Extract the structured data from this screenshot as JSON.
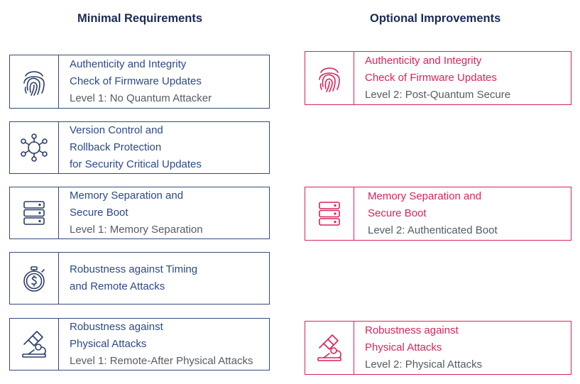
{
  "headings": {
    "minimal": "Minimal Requirements",
    "optional": "Optional Improvements"
  },
  "colors": {
    "minimal": "#2b4a86",
    "optional": "#d8245a",
    "level_text": "#555b63"
  },
  "minimal": [
    {
      "icon": "fingerprint-icon",
      "title1": "Authenticity and Integrity",
      "title2": "Check of Firmware Updates",
      "level": "Level 1: No Quantum Attacker"
    },
    {
      "icon": "network-nodes-icon",
      "title1": "Version Control and",
      "title2": "Rollback Protection",
      "title3": "for Security Critical Updates"
    },
    {
      "icon": "server-stack-icon",
      "title1": "Memory Separation and",
      "title2": "Secure Boot",
      "level": "Level 1: Memory Separation"
    },
    {
      "icon": "stopwatch-dollar-icon",
      "title1": "Robustness against Timing",
      "title2": "and Remote Attacks"
    },
    {
      "icon": "microscope-icon",
      "title1": "Robustness against",
      "title2": "Physical Attacks",
      "level": "Level 1: Remote-After Physical Attacks"
    }
  ],
  "optional": [
    {
      "icon": "fingerprint-icon",
      "title1": "Authenticity and Integrity",
      "title2": "Check of Firmware Updates",
      "level": "Level 2: Post-Quantum Secure"
    },
    {
      "icon": "server-stack-icon",
      "title1": "Memory Separation and",
      "title2": "Secure Boot",
      "level": "Level 2: Authenticated Boot"
    },
    {
      "icon": "microscope-icon",
      "title1": "Robustness against",
      "title2": "Physical Attacks",
      "level": "Level 2: Physical Attacks"
    }
  ]
}
